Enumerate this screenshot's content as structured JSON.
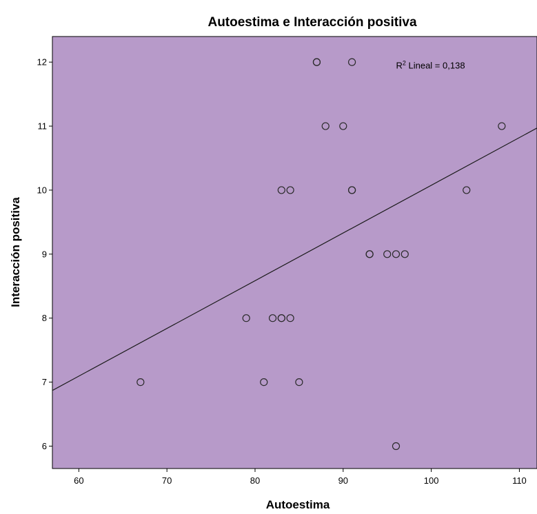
{
  "chart_data": {
    "type": "scatter",
    "title": "Autoestima e Interacción positiva",
    "xlabel": "Autoestima",
    "ylabel": "Interacción positiva",
    "xlim": [
      57,
      112
    ],
    "ylim": [
      5.65,
      12.4
    ],
    "x_ticks": [
      60,
      70,
      80,
      90,
      100,
      110
    ],
    "y_ticks": [
      6,
      7,
      8,
      9,
      10,
      11,
      12
    ],
    "grid": false,
    "colors": {
      "plot_background": "#b79ac9",
      "marker_stroke": "#2a2a2a",
      "fit_line": "#1a1a1a"
    },
    "points": [
      {
        "x": 87,
        "y": 12
      },
      {
        "x": 87,
        "y": 12
      },
      {
        "x": 91,
        "y": 12
      },
      {
        "x": 88,
        "y": 11
      },
      {
        "x": 90,
        "y": 11
      },
      {
        "x": 108,
        "y": 11
      },
      {
        "x": 83,
        "y": 10
      },
      {
        "x": 84,
        "y": 10
      },
      {
        "x": 91,
        "y": 10
      },
      {
        "x": 91,
        "y": 10
      },
      {
        "x": 104,
        "y": 10
      },
      {
        "x": 93,
        "y": 9
      },
      {
        "x": 93,
        "y": 9
      },
      {
        "x": 95,
        "y": 9
      },
      {
        "x": 96,
        "y": 9
      },
      {
        "x": 97,
        "y": 9
      },
      {
        "x": 79,
        "y": 8
      },
      {
        "x": 82,
        "y": 8
      },
      {
        "x": 83,
        "y": 8
      },
      {
        "x": 83,
        "y": 8
      },
      {
        "x": 84,
        "y": 8
      },
      {
        "x": 67,
        "y": 7
      },
      {
        "x": 81,
        "y": 7
      },
      {
        "x": 85,
        "y": 7
      },
      {
        "x": 96,
        "y": 6
      }
    ],
    "fit_line": {
      "x": [
        57,
        112
      ],
      "y": [
        6.87,
        10.97
      ]
    },
    "annotation": {
      "r2_prefix": "R",
      "r2_sup": "2",
      "r2_text": " Lineal = 0,138",
      "x": 96,
      "y": 11.9
    }
  }
}
